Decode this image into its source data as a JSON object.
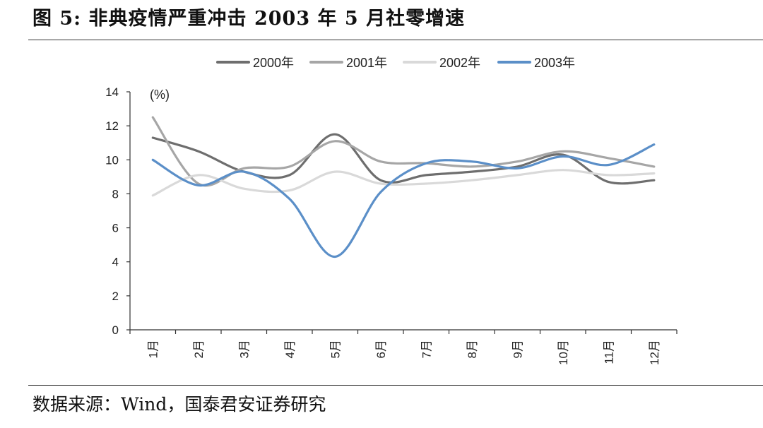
{
  "figure": {
    "title": "图 5:  非典疫情严重冲击 2003 年 5 月社零增速",
    "source": "数据来源：Wind，国泰君安证券研究"
  },
  "chart_data": {
    "type": "line",
    "title": "非典疫情严重冲击 2003 年 5 月社零增速",
    "ylabel": "(%)",
    "xlabel": "",
    "ylim": [
      0,
      14
    ],
    "yticks": [
      0,
      2,
      4,
      6,
      8,
      10,
      12,
      14
    ],
    "categories": [
      "1月",
      "2月",
      "3月",
      "4月",
      "5月",
      "6月",
      "7月",
      "8月",
      "9月",
      "10月",
      "11月",
      "12月"
    ],
    "legend_position": "top-center",
    "grid": false,
    "series": [
      {
        "name": "2000年",
        "color": "#6e6e6e",
        "values": [
          11.3,
          10.5,
          9.3,
          9.1,
          11.5,
          8.8,
          9.1,
          9.3,
          9.6,
          10.3,
          8.7,
          8.8
        ]
      },
      {
        "name": "2001年",
        "color": "#a6a6a6",
        "values": [
          12.5,
          8.6,
          9.5,
          9.6,
          11.1,
          9.9,
          9.8,
          9.6,
          9.9,
          10.5,
          10.1,
          9.6
        ]
      },
      {
        "name": "2002年",
        "color": "#d9d9d9",
        "values": [
          7.9,
          9.1,
          8.3,
          8.2,
          9.3,
          8.6,
          8.6,
          8.8,
          9.1,
          9.4,
          9.1,
          9.2
        ]
      },
      {
        "name": "2003年",
        "color": "#5b8fc8",
        "values": [
          10.0,
          8.5,
          9.3,
          7.7,
          4.3,
          8.1,
          9.8,
          9.9,
          9.5,
          10.2,
          9.7,
          10.9
        ]
      }
    ]
  }
}
